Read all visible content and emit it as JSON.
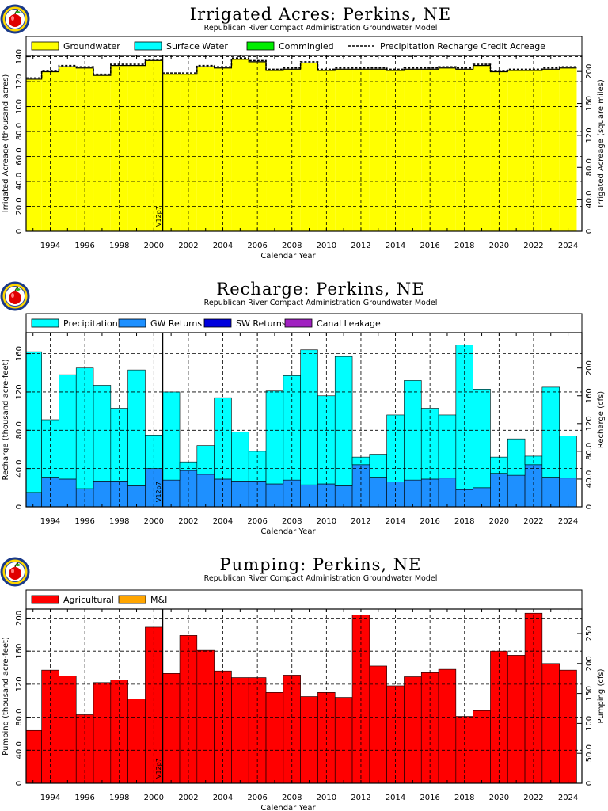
{
  "colors": {
    "groundwater": "#ffff00",
    "surface_water": "#00ffff",
    "commingled": "#00ee00",
    "precipitation": "#00ffff",
    "gw_returns": "#1e90ff",
    "sw_returns": "#0000dd",
    "canal_leakage": "#a020c0",
    "agricultural": "#ff0000",
    "mi": "#ffa500"
  },
  "chart_data": [
    {
      "type": "area",
      "title": "Irrigated Acres: Perkins, NE",
      "subtitle": "Republican River Compact Administration Groundwater Model",
      "xlabel": "Calendar Year",
      "ylabel": "Irrigated Acreage (thousand acres)",
      "ylabel_right": "Irrigated Acreage (square miles)",
      "xlim": [
        1992.6,
        2024.8
      ],
      "ylim": [
        0,
        141
      ],
      "ylim_right": [
        0,
        220
      ],
      "x_ticks": [
        "1994",
        "1996",
        "1998",
        "2000",
        "2002",
        "2004",
        "2006",
        "2008",
        "2010",
        "2012",
        "2014",
        "2016",
        "2018",
        "2020",
        "2022",
        "2024"
      ],
      "y_ticks": [
        "0",
        "20.0",
        "40.0",
        "60.0",
        "80.0",
        "100",
        "120",
        "140"
      ],
      "y_ticks_right": [
        "0",
        "40.0",
        "80.0",
        "120",
        "160",
        "200"
      ],
      "annotation": {
        "label": "V12p7",
        "x": 2000.5
      },
      "legend": [
        "Groundwater",
        "Surface Water",
        "Commingled",
        "Precipitation Recharge Credit Acreage"
      ],
      "categories": [
        "1993",
        "1994",
        "1995",
        "1996",
        "1997",
        "1998",
        "1999",
        "2000",
        "2001",
        "2002",
        "2003",
        "2004",
        "2005",
        "2006",
        "2007",
        "2008",
        "2009",
        "2010",
        "2011",
        "2012",
        "2013",
        "2014",
        "2015",
        "2016",
        "2017",
        "2018",
        "2019",
        "2020",
        "2021",
        "2022",
        "2023",
        "2024"
      ],
      "series": [
        {
          "name": "Groundwater",
          "values": [
            122,
            128,
            132,
            131,
            125,
            133,
            133,
            137,
            126,
            126,
            132,
            131,
            138,
            136,
            129,
            130,
            135,
            129,
            130,
            130,
            130,
            129,
            130,
            130,
            131,
            130,
            133,
            128,
            129,
            129,
            130,
            131
          ]
        }
      ]
    },
    {
      "type": "bar",
      "title": "Recharge: Perkins, NE",
      "subtitle": "Republican River Compact Administration Groundwater Model",
      "xlabel": "Calendar Year",
      "ylabel": "Recharge (thousand acre-feet)",
      "ylabel_right": "Recharge (cfs)",
      "xlim": [
        1992.6,
        2024.8
      ],
      "ylim": [
        0,
        182
      ],
      "ylim_right": [
        0,
        251
      ],
      "x_ticks": [
        "1994",
        "1996",
        "1998",
        "2000",
        "2002",
        "2004",
        "2006",
        "2008",
        "2010",
        "2012",
        "2014",
        "2016",
        "2018",
        "2020",
        "2022",
        "2024"
      ],
      "y_ticks": [
        "0",
        "40.0",
        "80.0",
        "120",
        "160"
      ],
      "y_ticks_right": [
        "0",
        "40.0",
        "80.0",
        "120",
        "160",
        "200"
      ],
      "annotation": {
        "label": "V12p7",
        "x": 2000.5
      },
      "legend": [
        "Precipitation",
        "GW Returns",
        "SW Returns",
        "Canal Leakage"
      ],
      "categories": [
        "1993",
        "1994",
        "1995",
        "1996",
        "1997",
        "1998",
        "1999",
        "2000",
        "2001",
        "2002",
        "2003",
        "2004",
        "2005",
        "2006",
        "2007",
        "2008",
        "2009",
        "2010",
        "2011",
        "2012",
        "2013",
        "2014",
        "2015",
        "2016",
        "2017",
        "2018",
        "2019",
        "2020",
        "2021",
        "2022",
        "2023",
        "2024"
      ],
      "series": [
        {
          "name": "GW Returns",
          "values": [
            15,
            31,
            29,
            19,
            27,
            27,
            22,
            40,
            28,
            38,
            34,
            29,
            27,
            27,
            24,
            28,
            23,
            24,
            22,
            44,
            31,
            26,
            28,
            29,
            30,
            18,
            20,
            35,
            33,
            44,
            31,
            30
          ]
        },
        {
          "name": "Precipitation",
          "values": [
            147,
            60,
            109,
            126,
            100,
            76,
            121,
            35,
            92,
            9,
            30,
            85,
            51,
            31,
            97,
            109,
            141,
            92,
            135,
            8,
            24,
            70,
            104,
            74,
            66,
            151,
            103,
            17,
            38,
            9,
            94,
            44
          ]
        }
      ]
    },
    {
      "type": "bar",
      "title": "Pumping: Perkins, NE",
      "subtitle": "Republican River Compact Administration Groundwater Model",
      "xlabel": "Calendar Year",
      "ylabel": "Pumping (thousand acre-feet)",
      "ylabel_right": "Pumping (cfs)",
      "xlim": [
        1992.6,
        2024.8
      ],
      "ylim": [
        0,
        211
      ],
      "ylim_right": [
        0,
        291
      ],
      "x_ticks": [
        "1994",
        "1996",
        "1998",
        "2000",
        "2002",
        "2004",
        "2006",
        "2008",
        "2010",
        "2012",
        "2014",
        "2016",
        "2018",
        "2020",
        "2022",
        "2024"
      ],
      "y_ticks": [
        "0",
        "40.0",
        "80.0",
        "120",
        "160",
        "200"
      ],
      "y_ticks_right": [
        "0",
        "50.0",
        "100",
        "150",
        "200",
        "250"
      ],
      "annotation": {
        "label": "V12p7",
        "x": 2000.5
      },
      "legend": [
        "Agricultural",
        "M&I"
      ],
      "categories": [
        "1993",
        "1994",
        "1995",
        "1996",
        "1997",
        "1998",
        "1999",
        "2000",
        "2001",
        "2002",
        "2003",
        "2004",
        "2005",
        "2006",
        "2007",
        "2008",
        "2009",
        "2010",
        "2011",
        "2012",
        "2013",
        "2014",
        "2015",
        "2016",
        "2017",
        "2018",
        "2019",
        "2020",
        "2021",
        "2022",
        "2023",
        "2024"
      ],
      "series": [
        {
          "name": "Agricultural",
          "values": [
            64,
            137,
            130,
            83,
            122,
            125,
            102,
            189,
            133,
            179,
            161,
            136,
            128,
            128,
            110,
            131,
            105,
            110,
            104,
            204,
            142,
            118,
            129,
            134,
            138,
            81,
            88,
            160,
            155,
            206,
            145,
            137
          ]
        }
      ]
    }
  ]
}
